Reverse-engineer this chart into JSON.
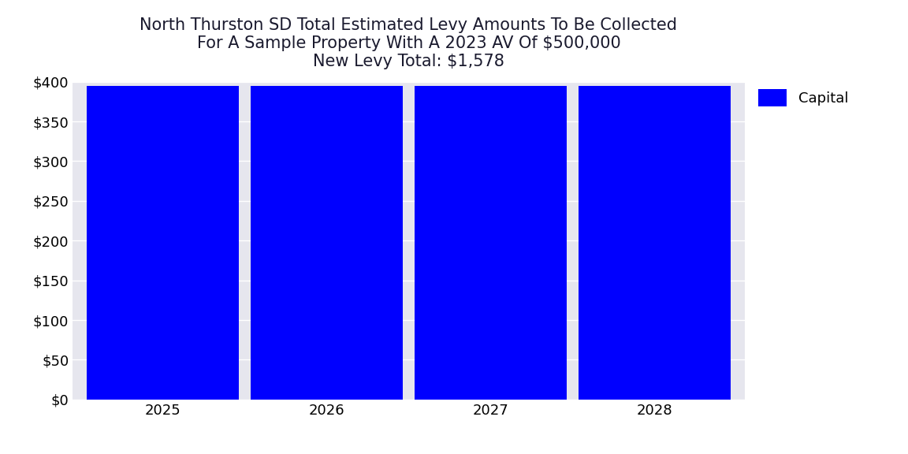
{
  "title_line1": "North Thurston SD Total Estimated Levy Amounts To Be Collected",
  "title_line2": "For A Sample Property With A 2023 AV Of $500,000",
  "title_line3": "New Levy Total: $1,578",
  "categories": [
    2025,
    2026,
    2027,
    2028
  ],
  "values": [
    394.5,
    394.5,
    394.5,
    394.5
  ],
  "bar_color": "#0000FF",
  "legend_label": "Capital",
  "ylim": [
    0,
    400
  ],
  "yticks": [
    0,
    50,
    100,
    150,
    200,
    250,
    300,
    350,
    400
  ],
  "background_color": "#E6E6EE",
  "figure_background": "#FFFFFF",
  "title_fontsize": 15,
  "tick_fontsize": 13,
  "legend_fontsize": 13,
  "bar_width": 0.93
}
